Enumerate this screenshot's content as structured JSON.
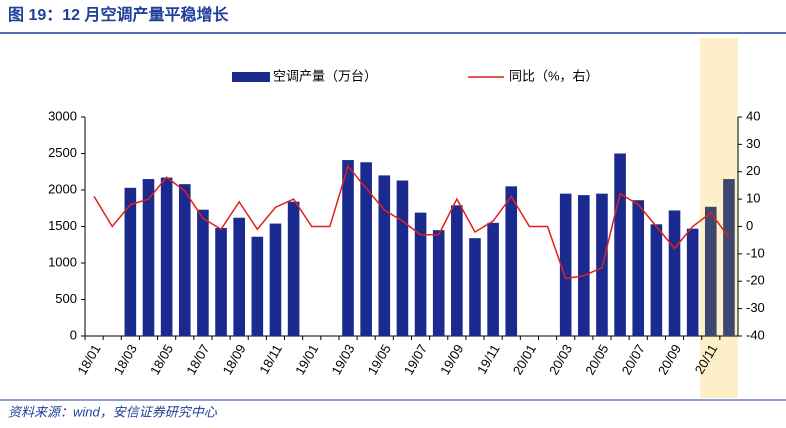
{
  "chart_data": {
    "type": "bar-line",
    "title": "图 19：12 月空调产量平稳增长",
    "source": "资料来源：wind，安信证券研究中心",
    "categories": [
      "18/01",
      null,
      "18/03",
      null,
      "18/05",
      null,
      "18/07",
      null,
      "18/09",
      null,
      "18/11",
      null,
      "19/01",
      null,
      "19/03",
      null,
      "19/05",
      null,
      "19/07",
      null,
      "19/09",
      null,
      "19/11",
      null,
      "20/01",
      null,
      "20/03",
      null,
      "20/05",
      null,
      "20/07",
      null,
      "20/09",
      null,
      "20/11",
      null
    ],
    "series": [
      {
        "name": "空调产量（万台）",
        "type": "bar",
        "axis": "y",
        "color": "#1b2a8e",
        "colors": [
          "#1b2a8e",
          "#1b2a8e",
          "#1b2a8e",
          "#1b2a8e",
          "#1b2a8e",
          "#1b2a8e",
          "#1b2a8e",
          "#1b2a8e",
          "#1b2a8e",
          "#1b2a8e",
          "#1b2a8e",
          "#1b2a8e",
          "#1b2a8e",
          "#1b2a8e",
          "#1b2a8e",
          "#1b2a8e",
          "#1b2a8e",
          "#1b2a8e",
          "#1b2a8e",
          "#1b2a8e",
          "#1b2a8e",
          "#1b2a8e",
          "#1b2a8e",
          "#1b2a8e",
          "#1b2a8e",
          "#1b2a8e",
          "#1b2a8e",
          "#1b2a8e",
          "#1b2a8e",
          "#1b2a8e",
          "#1b2a8e",
          "#1b2a8e",
          "#1b2a8e",
          "#1b2a8e",
          "#3d4870",
          "#3d4870"
        ],
        "values": [
          null,
          null,
          2030,
          2150,
          2170,
          2080,
          1730,
          1480,
          1620,
          1360,
          1540,
          1840,
          null,
          null,
          2410,
          2380,
          2200,
          2130,
          1690,
          1450,
          1790,
          1340,
          1550,
          2050,
          null,
          null,
          1950,
          1930,
          1950,
          2500,
          1860,
          1530,
          1720,
          1470,
          1770,
          2150
        ]
      },
      {
        "name": "同比（%，右）",
        "type": "line",
        "axis": "y2",
        "color": "#e0201c",
        "values": [
          11,
          0,
          8,
          10,
          18,
          13,
          3,
          -1,
          9,
          -1,
          7,
          10,
          0,
          0,
          22,
          14,
          6,
          2,
          -3,
          -3,
          10,
          -2,
          2,
          11,
          0,
          0,
          -19,
          -18,
          -15,
          12,
          8,
          0,
          -8,
          0,
          5,
          -4
        ]
      }
    ],
    "ylim": [
      0,
      3000
    ],
    "yticks": [
      0,
      500,
      1000,
      1500,
      2000,
      2500,
      3000
    ],
    "y2lim": [
      -40,
      40
    ],
    "y2ticks": [
      -40,
      -30,
      -20,
      -10,
      0,
      10,
      20,
      30,
      40
    ],
    "legend": "top"
  }
}
